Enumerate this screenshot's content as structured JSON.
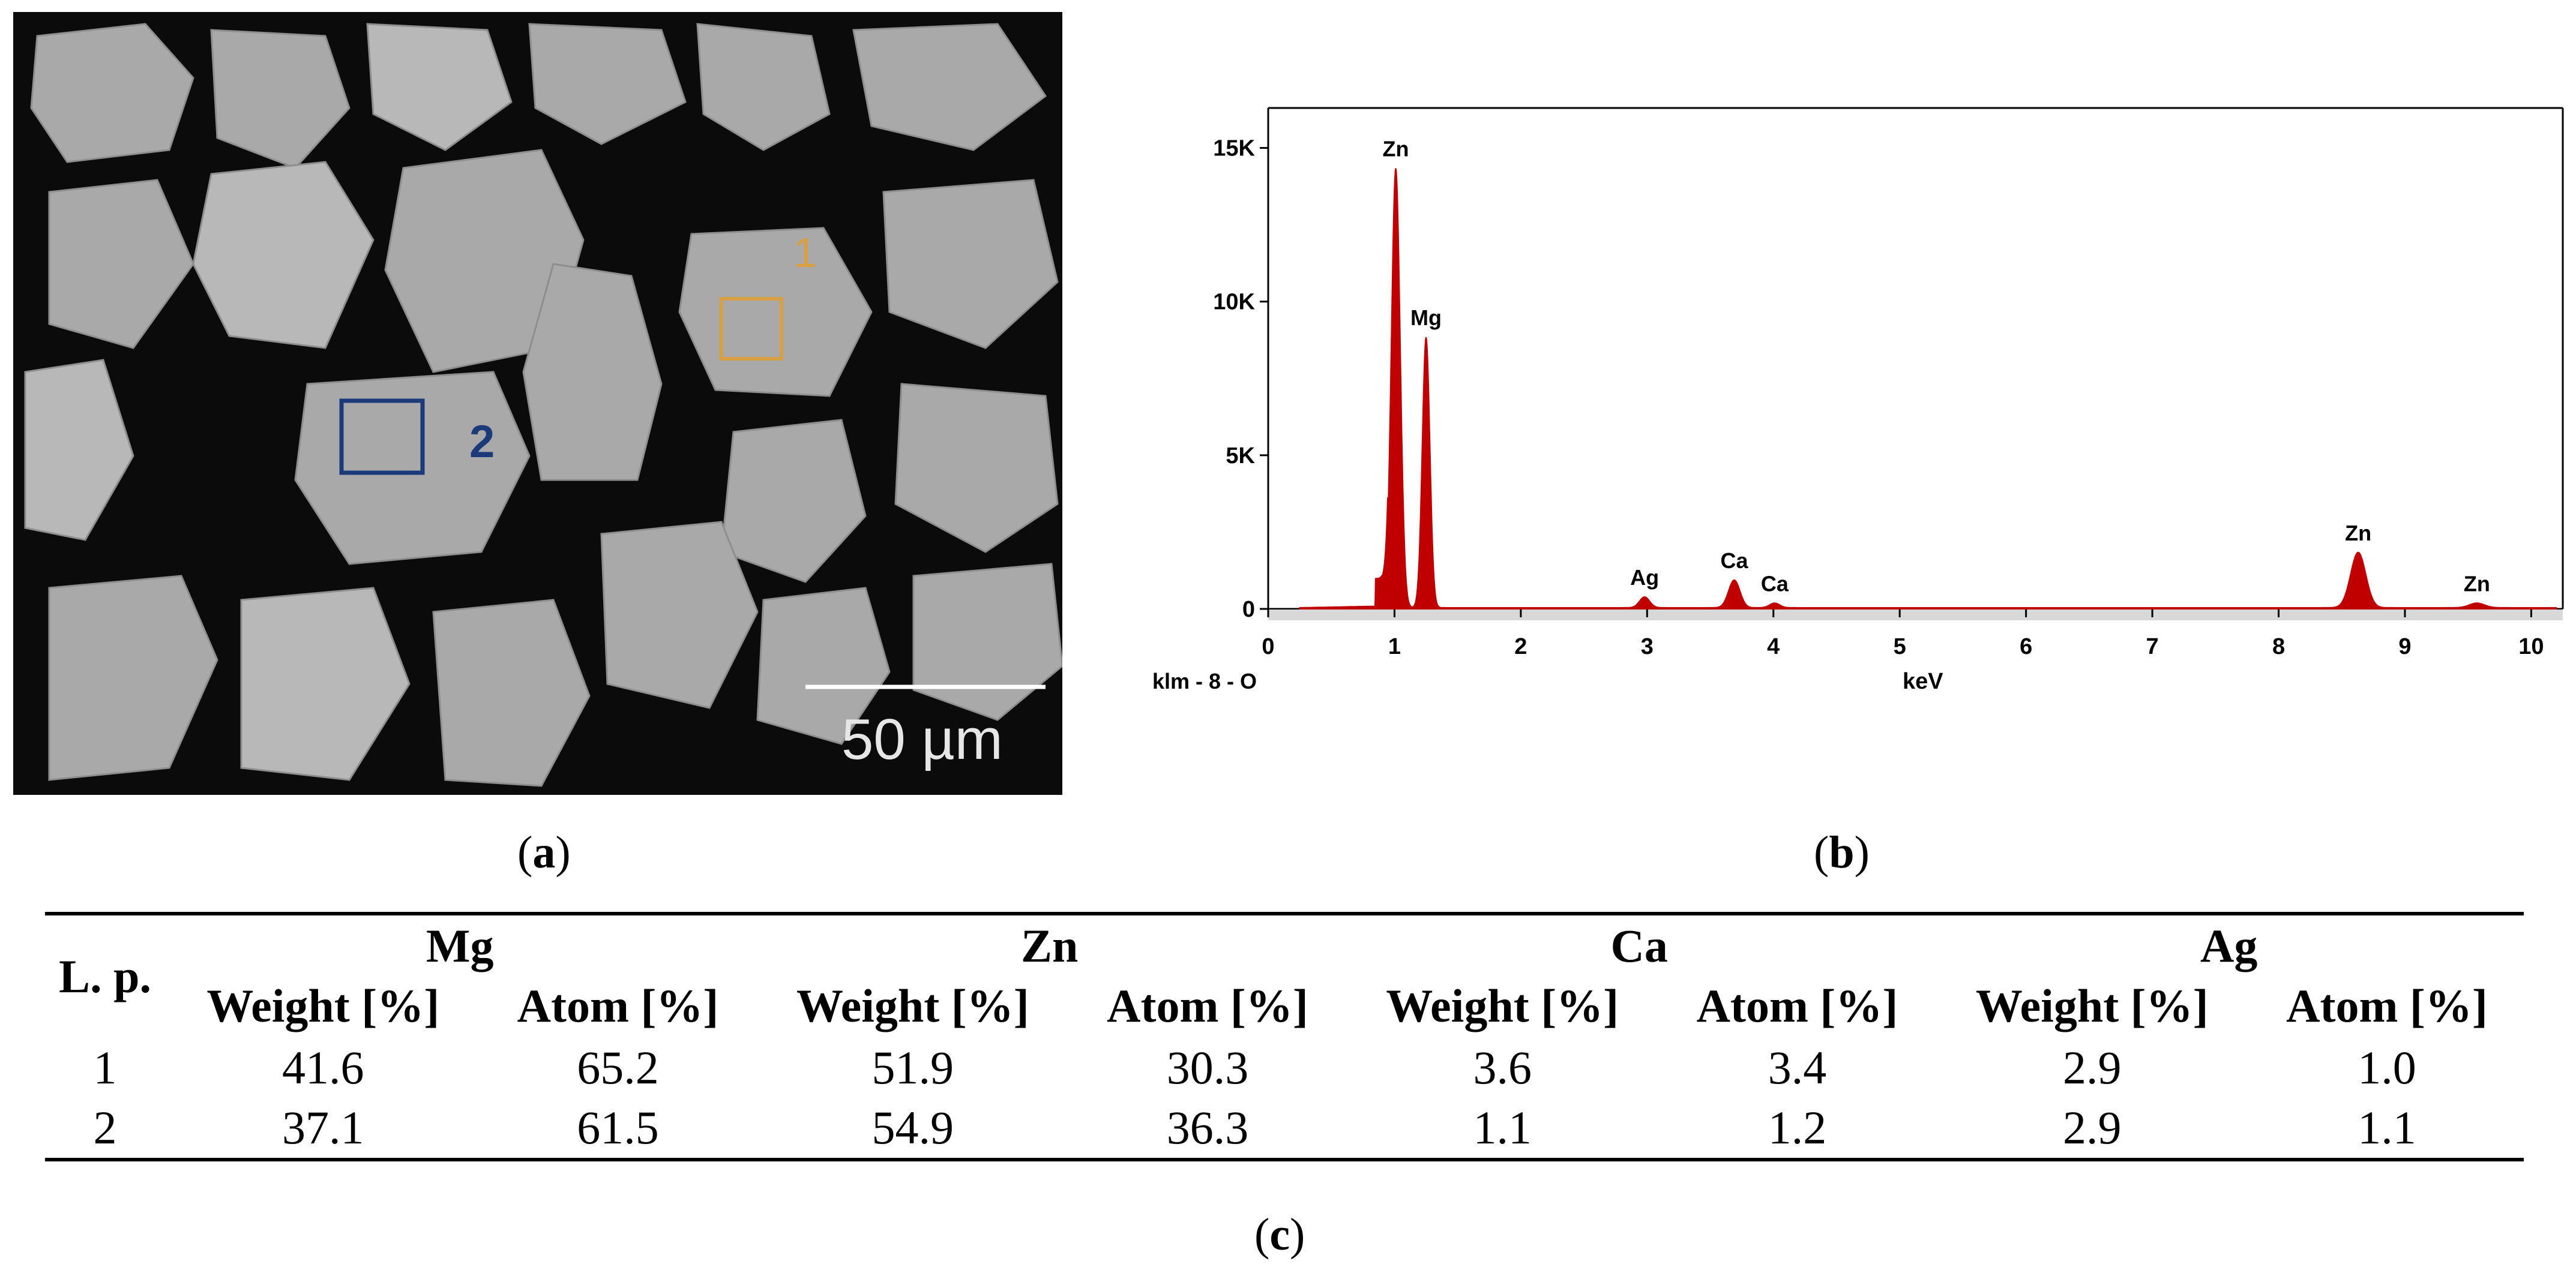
{
  "panel_a": {
    "caption_letter": "a",
    "region_labels": [
      "1",
      "2"
    ],
    "scale_bar_text": "50 µm",
    "colors": {
      "region_1": "#d9a043",
      "region_2": "#1c3a7a"
    }
  },
  "panel_b": {
    "caption_letter": "b",
    "corner_label": "klm - 8 - O",
    "chart_data": {
      "type": "area",
      "title": "",
      "xlabel": "keV",
      "ylabel": "",
      "xlim": [
        0,
        10.25
      ],
      "ylim": [
        0,
        16300
      ],
      "x_ticks": [
        "0",
        "1",
        "2",
        "3",
        "4",
        "5",
        "6",
        "7",
        "8",
        "9",
        "10"
      ],
      "y_ticks": [
        "0",
        "5K",
        "10K",
        "15K"
      ],
      "y_tick_values": [
        0,
        5000,
        10000,
        15000
      ],
      "color": "#c00000",
      "peaks": [
        {
          "element": "Zn",
          "energy_kev": 1.01,
          "counts": 14300
        },
        {
          "element": "Mg",
          "energy_kev": 1.25,
          "counts": 8800
        },
        {
          "element": "Ag",
          "energy_kev": 2.98,
          "counts": 350
        },
        {
          "element": "Ca",
          "energy_kev": 3.69,
          "counts": 900
        },
        {
          "element": "Ca",
          "energy_kev": 4.01,
          "counts": 150
        },
        {
          "element": "Zn",
          "energy_kev": 8.63,
          "counts": 1800
        },
        {
          "element": "Zn",
          "energy_kev": 9.57,
          "counts": 150
        }
      ]
    }
  },
  "panel_c": {
    "caption_letter": "c",
    "row_header": "L. p.",
    "elements": [
      "Mg",
      "Zn",
      "Ca",
      "Ag"
    ],
    "sub_headers": [
      "Weight [%]",
      "Atom [%]"
    ],
    "rows": [
      {
        "lp": "1",
        "values": [
          "41.6",
          "65.2",
          "51.9",
          "30.3",
          "3.6",
          "3.4",
          "2.9",
          "1.0"
        ]
      },
      {
        "lp": "2",
        "values": [
          "37.1",
          "61.5",
          "54.9",
          "36.3",
          "1.1",
          "1.2",
          "2.9",
          "1.1"
        ]
      }
    ]
  }
}
